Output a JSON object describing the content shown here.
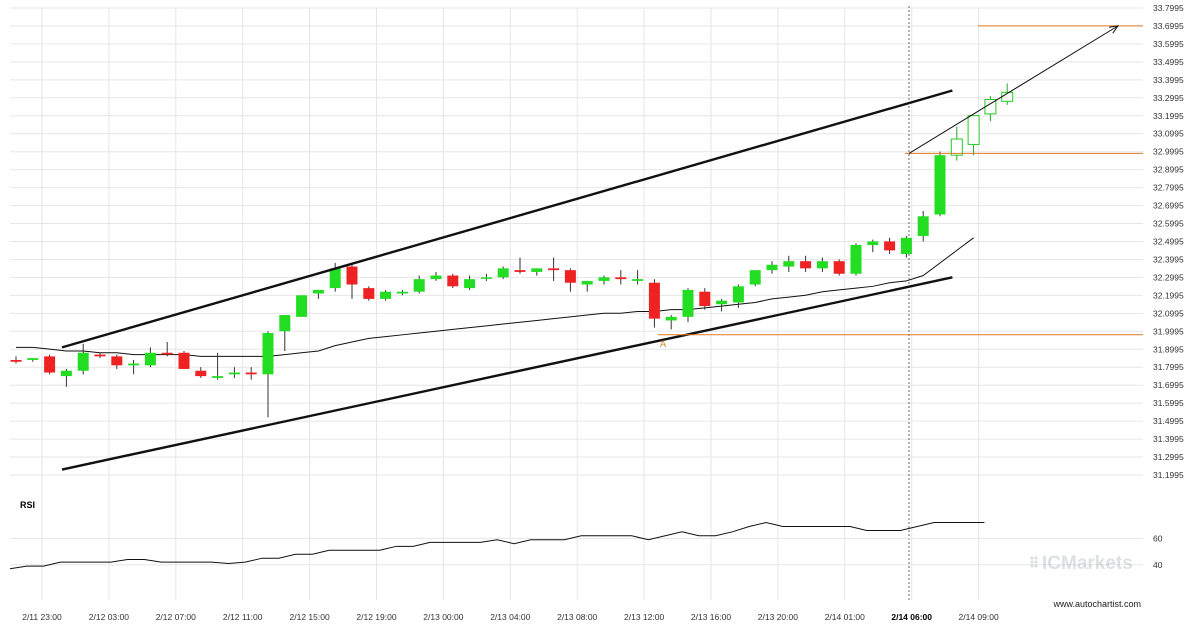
{
  "chart_data": [
    {
      "type": "candlestick",
      "yticks": [
        "33.7995",
        "33.6995",
        "33.5995",
        "33.4995",
        "33.3995",
        "33.2995",
        "33.1995",
        "33.0995",
        "32.9995",
        "32.8995",
        "32.7995",
        "32.6995",
        "32.5995",
        "32.4995",
        "32.3995",
        "32.2995",
        "32.1995",
        "32.0995",
        "31.9995",
        "31.8995",
        "31.7995",
        "31.6995",
        "31.5995",
        "31.4995",
        "31.3995",
        "31.2995",
        "31.1995"
      ],
      "ylim": [
        31.1995,
        33.7995
      ],
      "xticks": [
        "2/11 23:00",
        "2/12 03:00",
        "2/12 07:00",
        "2/12 11:00",
        "2/12 15:00",
        "2/12 19:00",
        "2/13 00:00",
        "2/13 04:00",
        "2/13 08:00",
        "2/13 12:00",
        "2/13 16:00",
        "2/13 20:00",
        "2/14 01:00",
        "2/14 06:00",
        "2/14 09:00"
      ],
      "highlight_xtick": "2/14 06:00",
      "candles": [
        [
          31.84,
          31.86,
          31.82,
          31.83
        ],
        [
          31.84,
          31.85,
          31.83,
          31.85
        ],
        [
          31.86,
          31.87,
          31.76,
          31.77
        ],
        [
          31.75,
          31.79,
          31.69,
          31.78
        ],
        [
          31.78,
          31.93,
          31.76,
          31.88
        ],
        [
          31.87,
          31.88,
          31.85,
          31.86
        ],
        [
          31.86,
          31.87,
          31.79,
          31.81
        ],
        [
          31.81,
          31.84,
          31.76,
          31.82
        ],
        [
          31.81,
          31.91,
          31.8,
          31.88
        ],
        [
          31.88,
          31.94,
          31.86,
          31.87
        ],
        [
          31.88,
          31.89,
          31.79,
          31.79
        ],
        [
          31.78,
          31.8,
          31.74,
          31.75
        ],
        [
          31.74,
          31.88,
          31.73,
          31.75
        ],
        [
          31.76,
          31.8,
          31.74,
          31.77
        ],
        [
          31.77,
          31.8,
          31.73,
          31.76
        ],
        [
          31.76,
          32.0,
          31.52,
          31.99
        ],
        [
          32.0,
          32.09,
          31.89,
          32.09
        ],
        [
          32.08,
          32.2,
          32.08,
          32.2
        ],
        [
          32.21,
          32.23,
          32.18,
          32.23
        ],
        [
          32.24,
          32.38,
          32.22,
          32.35
        ],
        [
          32.36,
          32.37,
          32.18,
          32.26
        ],
        [
          32.24,
          32.25,
          32.17,
          32.18
        ],
        [
          32.18,
          32.23,
          32.17,
          32.22
        ],
        [
          32.21,
          32.23,
          32.2,
          32.22
        ],
        [
          32.22,
          32.31,
          32.21,
          32.29
        ],
        [
          32.29,
          32.33,
          32.28,
          32.31
        ],
        [
          32.31,
          32.32,
          32.24,
          32.25
        ],
        [
          32.24,
          32.31,
          32.23,
          32.29
        ],
        [
          32.3,
          32.32,
          32.28,
          32.3
        ],
        [
          32.3,
          32.36,
          32.29,
          32.35
        ],
        [
          32.34,
          32.41,
          32.32,
          32.33
        ],
        [
          32.33,
          32.35,
          32.31,
          32.35
        ],
        [
          32.35,
          32.41,
          32.28,
          32.34
        ],
        [
          32.34,
          32.35,
          32.22,
          32.27
        ],
        [
          32.26,
          32.28,
          32.22,
          32.28
        ],
        [
          32.28,
          32.31,
          32.26,
          32.3
        ],
        [
          32.3,
          32.34,
          32.26,
          32.29
        ],
        [
          32.28,
          32.34,
          32.26,
          32.29
        ],
        [
          32.27,
          32.29,
          32.02,
          32.07
        ],
        [
          32.06,
          32.09,
          32.01,
          32.08
        ],
        [
          32.08,
          32.24,
          32.05,
          32.23
        ],
        [
          32.22,
          32.24,
          32.12,
          32.14
        ],
        [
          32.15,
          32.18,
          32.11,
          32.17
        ],
        [
          32.16,
          32.26,
          32.13,
          32.25
        ],
        [
          32.26,
          32.34,
          32.25,
          32.34
        ],
        [
          32.34,
          32.39,
          32.32,
          32.37
        ],
        [
          32.36,
          32.42,
          32.33,
          32.39
        ],
        [
          32.39,
          32.42,
          32.33,
          32.35
        ],
        [
          32.35,
          32.41,
          32.33,
          32.39
        ],
        [
          32.39,
          32.4,
          32.31,
          32.32
        ],
        [
          32.32,
          32.49,
          32.31,
          32.48
        ],
        [
          32.48,
          32.51,
          32.44,
          32.5
        ],
        [
          32.5,
          32.52,
          32.43,
          32.45
        ],
        [
          32.43,
          32.53,
          32.41,
          32.52
        ],
        [
          32.53,
          32.67,
          32.5,
          32.64
        ],
        [
          32.65,
          33.0,
          32.64,
          32.98
        ],
        [
          32.98,
          33.14,
          32.95,
          33.07
        ],
        [
          33.04,
          33.2,
          32.98,
          33.2
        ],
        [
          33.21,
          33.31,
          33.17,
          33.29
        ],
        [
          33.28,
          33.38,
          33.26,
          33.33
        ]
      ],
      "moving_average": [
        31.91,
        31.91,
        31.9,
        31.89,
        31.89,
        31.88,
        31.88,
        31.87,
        31.87,
        31.87,
        31.87,
        31.86,
        31.86,
        31.86,
        31.86,
        31.86,
        31.87,
        31.88,
        31.89,
        31.92,
        31.94,
        31.96,
        31.97,
        31.98,
        31.99,
        32.0,
        32.01,
        32.02,
        32.03,
        32.04,
        32.05,
        32.06,
        32.07,
        32.08,
        32.09,
        32.1,
        32.1,
        32.11,
        32.11,
        32.12,
        32.12,
        32.13,
        32.14,
        32.15,
        32.16,
        32.18,
        32.19,
        32.2,
        32.22,
        32.23,
        32.24,
        32.25,
        32.27,
        32.28,
        32.31,
        32.38,
        32.45,
        32.52
      ],
      "channel_upper": [
        [
          31.91,
          0
        ],
        [
          33.34,
          53
        ]
      ],
      "channel_lower": [
        [
          31.23,
          0
        ],
        [
          32.3,
          53
        ]
      ],
      "projection_arrow": [
        [
          32.99,
          53
        ],
        [
          33.7,
          66
        ]
      ],
      "levels": [
        33.7,
        32.99,
        31.98
      ],
      "point_label": "A",
      "colors": {
        "bull": "#22dd22",
        "bear": "#ee2222",
        "level": "#e07a20",
        "channel": "#111111",
        "grid": "#e6e6e6"
      }
    },
    {
      "type": "line",
      "ylabel": "RSI",
      "yticks": [
        "60",
        "40"
      ],
      "ylim": [
        30,
        80
      ],
      "values": [
        37,
        39,
        39,
        42,
        42,
        42,
        42,
        44,
        44,
        42,
        42,
        42,
        42,
        41,
        42,
        45,
        45,
        48,
        48,
        51,
        51,
        51,
        51,
        54,
        54,
        57,
        57,
        57,
        57,
        59,
        56,
        59,
        59,
        59,
        62,
        62,
        62,
        62,
        59,
        62,
        65,
        62,
        62,
        65,
        69,
        72,
        69,
        69,
        69,
        69,
        69,
        66,
        66,
        66,
        69,
        72,
        72,
        72,
        72
      ]
    }
  ],
  "watermark": {
    "brand": "ICMarkets",
    "site": "www.autochartist.com"
  }
}
